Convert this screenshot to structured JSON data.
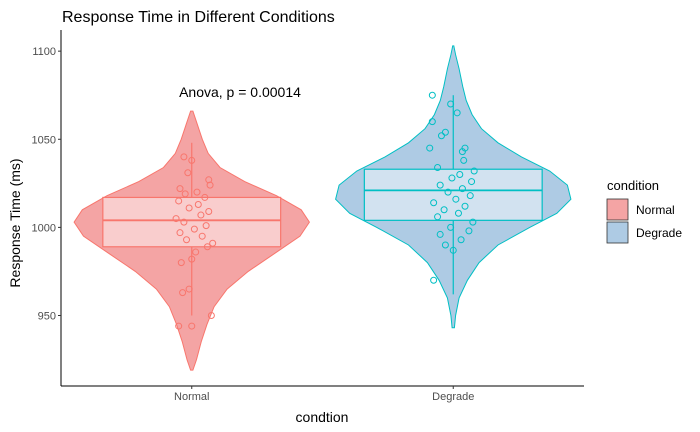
{
  "chart_data": {
    "type": "violin",
    "title": "Response Time in Different Conditions",
    "xlabel": "condtion",
    "ylabel": "Response Time (ms)",
    "ylim": [
      910,
      1112
    ],
    "yticks": [
      950,
      1000,
      1050,
      1100
    ],
    "ytick_labels": [
      "950",
      "1000",
      "1050",
      "1100"
    ],
    "grid": false,
    "annotation": "Anova, p = 0.00014",
    "legend": {
      "title": "condition",
      "position": "right",
      "entries": [
        "Normal",
        "Degrade"
      ]
    },
    "series": [
      {
        "name": "Normal",
        "category": "Normal",
        "fill_color": "#f4a4a4",
        "line_color": "#f8766d",
        "violin": [
          [
            919,
            0.01
          ],
          [
            925,
            0.04
          ],
          [
            935,
            0.08
          ],
          [
            945,
            0.13
          ],
          [
            955,
            0.19
          ],
          [
            965,
            0.3
          ],
          [
            975,
            0.48
          ],
          [
            985,
            0.7
          ],
          [
            995,
            0.92
          ],
          [
            1003,
            1.0
          ],
          [
            1010,
            0.93
          ],
          [
            1018,
            0.72
          ],
          [
            1026,
            0.45
          ],
          [
            1034,
            0.24
          ],
          [
            1042,
            0.14
          ],
          [
            1050,
            0.09
          ],
          [
            1058,
            0.05
          ],
          [
            1066,
            0.01
          ]
        ],
        "box": {
          "q1": 989,
          "median": 1004,
          "q3": 1017,
          "whisker_low": 950,
          "whisker_high": 1048
        },
        "points": [
          [
            -0.1,
            944
          ],
          [
            0.0,
            944
          ],
          [
            0.15,
            950
          ],
          [
            -0.07,
            963
          ],
          [
            -0.02,
            965
          ],
          [
            -0.08,
            980
          ],
          [
            0.0,
            982
          ],
          [
            0.03,
            986
          ],
          [
            0.12,
            989
          ],
          [
            0.16,
            991
          ],
          [
            -0.04,
            993
          ],
          [
            0.08,
            995
          ],
          [
            -0.09,
            997
          ],
          [
            0.02,
            999
          ],
          [
            0.11,
            1001
          ],
          [
            -0.06,
            1003
          ],
          [
            -0.12,
            1005
          ],
          [
            0.07,
            1007
          ],
          [
            0.13,
            1009
          ],
          [
            -0.02,
            1011
          ],
          [
            0.05,
            1013
          ],
          [
            -0.1,
            1015
          ],
          [
            0.1,
            1017
          ],
          [
            -0.05,
            1019
          ],
          [
            0.04,
            1020
          ],
          [
            -0.09,
            1022
          ],
          [
            0.14,
            1024
          ],
          [
            0.13,
            1027
          ],
          [
            -0.03,
            1031
          ],
          [
            0.0,
            1038
          ],
          [
            -0.06,
            1040
          ]
        ]
      },
      {
        "name": "Degrade",
        "category": "Degrade",
        "fill_color": "#aecbe4",
        "line_color": "#00bfc4",
        "violin": [
          [
            943,
            0.01
          ],
          [
            950,
            0.02
          ],
          [
            960,
            0.05
          ],
          [
            970,
            0.12
          ],
          [
            980,
            0.22
          ],
          [
            990,
            0.38
          ],
          [
            1000,
            0.65
          ],
          [
            1008,
            0.88
          ],
          [
            1016,
            1.0
          ],
          [
            1024,
            0.97
          ],
          [
            1032,
            0.82
          ],
          [
            1040,
            0.58
          ],
          [
            1048,
            0.38
          ],
          [
            1056,
            0.24
          ],
          [
            1064,
            0.16
          ],
          [
            1072,
            0.11
          ],
          [
            1080,
            0.08
          ],
          [
            1090,
            0.05
          ],
          [
            1098,
            0.02
          ],
          [
            1103,
            0.005
          ]
        ],
        "box": {
          "q1": 1004,
          "median": 1021,
          "q3": 1033,
          "whisker_low": 962,
          "whisker_high": 1075
        },
        "points": [
          [
            -0.15,
            970
          ],
          [
            0.0,
            987
          ],
          [
            -0.06,
            990
          ],
          [
            0.06,
            993
          ],
          [
            -0.1,
            996
          ],
          [
            0.12,
            998
          ],
          [
            -0.02,
            1000
          ],
          [
            0.15,
            1003
          ],
          [
            -0.12,
            1006
          ],
          [
            0.04,
            1008
          ],
          [
            -0.07,
            1010
          ],
          [
            0.09,
            1012
          ],
          [
            -0.15,
            1014
          ],
          [
            0.02,
            1016
          ],
          [
            0.13,
            1018
          ],
          [
            -0.04,
            1020
          ],
          [
            0.07,
            1022
          ],
          [
            -0.1,
            1024
          ],
          [
            0.14,
            1026
          ],
          [
            -0.01,
            1028
          ],
          [
            0.05,
            1030
          ],
          [
            0.16,
            1032
          ],
          [
            -0.12,
            1034
          ],
          [
            0.08,
            1038
          ],
          [
            0.07,
            1043
          ],
          [
            0.09,
            1045
          ],
          [
            -0.18,
            1045
          ],
          [
            -0.09,
            1052
          ],
          [
            -0.06,
            1054
          ],
          [
            -0.16,
            1060
          ],
          [
            0.03,
            1065
          ],
          [
            -0.02,
            1070
          ],
          [
            -0.16,
            1075
          ]
        ]
      }
    ]
  }
}
